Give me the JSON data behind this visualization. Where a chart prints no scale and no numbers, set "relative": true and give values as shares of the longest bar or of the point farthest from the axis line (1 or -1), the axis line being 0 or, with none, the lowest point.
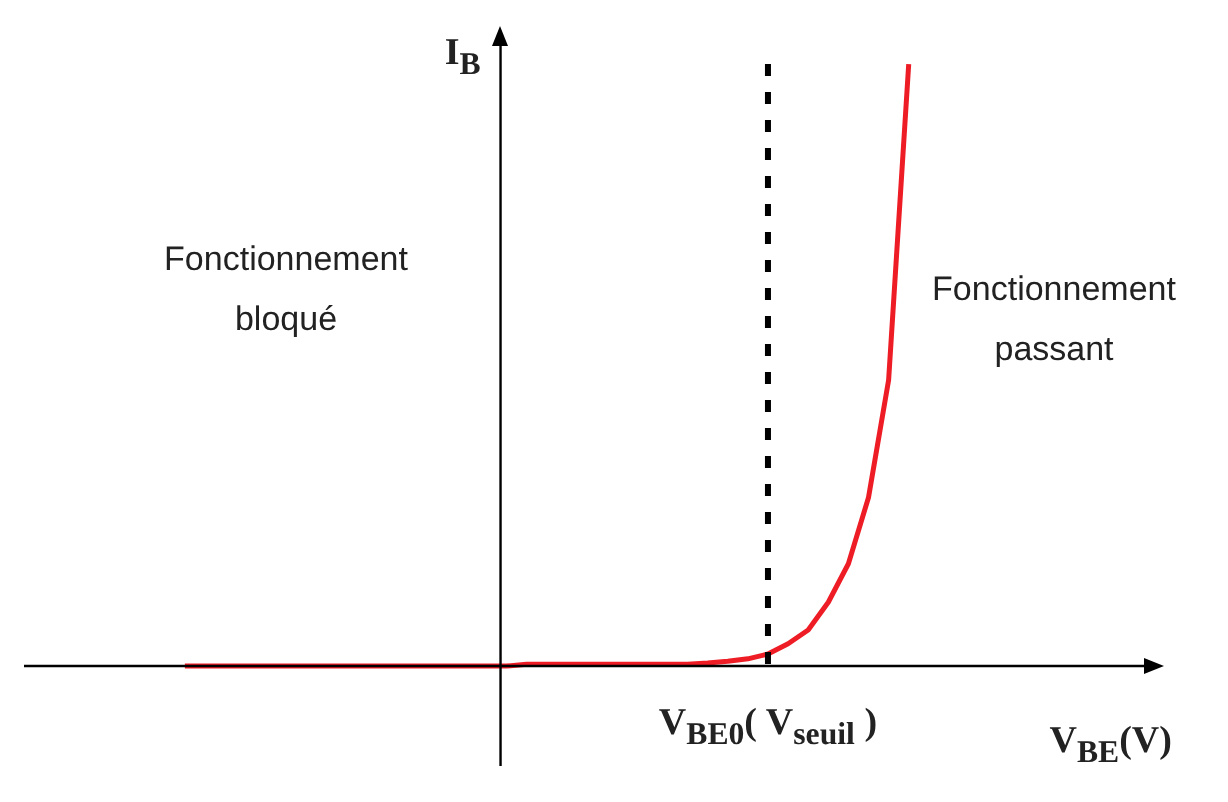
{
  "chart_data": {
    "type": "line",
    "relative": true,
    "marker": "none",
    "color": "#ee1c25",
    "xlabel": "V$_{BE}$(V)",
    "ylabel": "I$_{B}$",
    "categories": [
      null,
      null,
      null,
      null,
      null,
      null,
      null,
      null,
      null,
      null,
      null,
      null,
      null,
      null,
      null,
      null,
      null,
      null,
      null,
      null,
      null,
      null,
      null,
      null,
      null,
      null,
      null,
      null,
      null,
      null,
      null,
      null,
      null,
      null,
      null,
      null,
      null,
      null,
      null,
      null,
      null,
      null,
      null,
      null,
      null,
      null,
      null,
      null,
      null,
      null,
      null,
      null,
      null,
      null,
      null,
      null,
      null
    ],
    "values": [
      null,
      null,
      null,
      null,
      null,
      null,
      null,
      null,
      0,
      0,
      0,
      0,
      0,
      0,
      0,
      0,
      0,
      0,
      0,
      0,
      0,
      0,
      0,
      0,
      0,
      0.003,
      0.003,
      0.003,
      0.003,
      0.003,
      0.003,
      0.003,
      0.003,
      0.003,
      0.005,
      0.008,
      0.012,
      0.02,
      0.037,
      0.06,
      0.106,
      0.17,
      0.28,
      0.475,
      1,
      null,
      null,
      null,
      null,
      null,
      null,
      null,
      null,
      null,
      null,
      null,
      null
    ],
    "ref_lines": [
      {
        "axis": "x",
        "label": "V$_{BE0}$( V$_{seuil}$ )",
        "line_style": "dashed",
        "color": "#000000"
      }
    ],
    "annotations": [
      "Fonctionnement bloqué",
      "Fonctionnement passant"
    ]
  }
}
